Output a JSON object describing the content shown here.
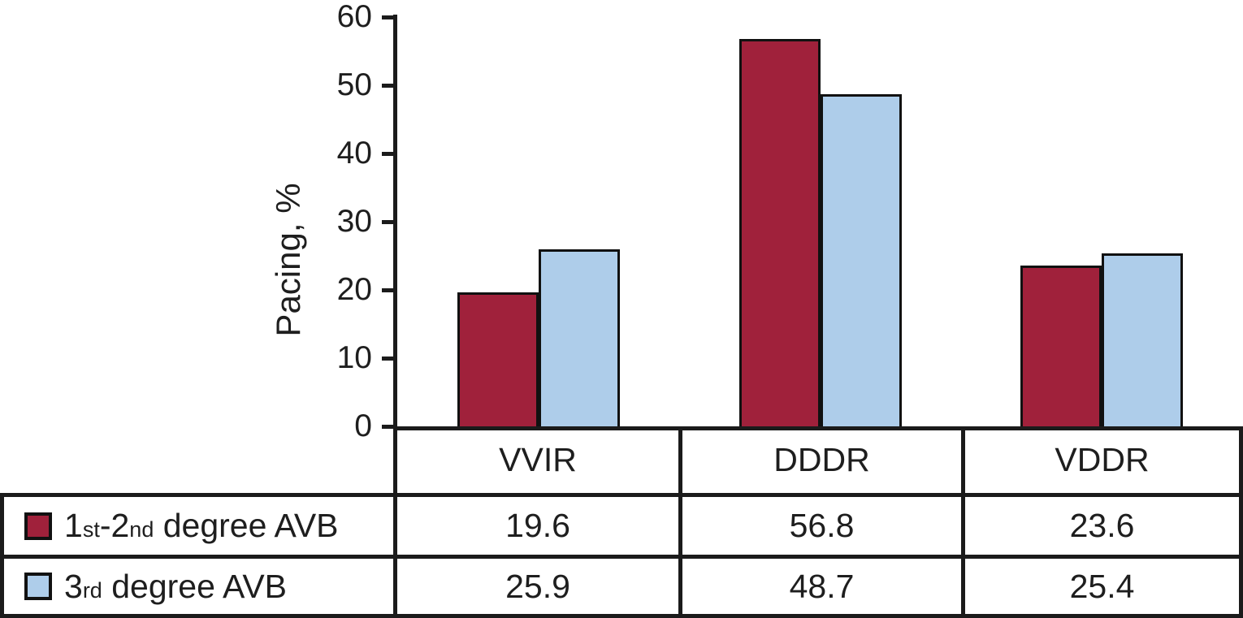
{
  "chart_data": {
    "type": "bar",
    "title": "",
    "xlabel": "",
    "ylabel": "Pacing, %",
    "ylim": [
      0,
      60
    ],
    "yticks": [
      0,
      10,
      20,
      30,
      40,
      50,
      60
    ],
    "grid": false,
    "legend_position": "table-left",
    "categories": [
      "VVIR",
      "DDDR",
      "VDDR"
    ],
    "series": [
      {
        "name": "1st-2nd degree AVB",
        "label_parts": [
          {
            "text": "1",
            "small": false
          },
          {
            "text": "st",
            "small": true
          },
          {
            "text": "-2",
            "small": false
          },
          {
            "text": "nd",
            "small": true
          },
          {
            "text": " degree AVB",
            "small": false
          }
        ],
        "color": "#A0213B",
        "border_color": "#111111",
        "values": [
          19.6,
          56.8,
          23.6
        ]
      },
      {
        "name": "3rd degree AVB",
        "label_parts": [
          {
            "text": "3",
            "small": false
          },
          {
            "text": "rd",
            "small": true
          },
          {
            "text": " degree AVB",
            "small": false
          }
        ],
        "color": "#AECDEA",
        "border_color": "#111111",
        "values": [
          25.9,
          48.7,
          25.4
        ]
      }
    ]
  }
}
